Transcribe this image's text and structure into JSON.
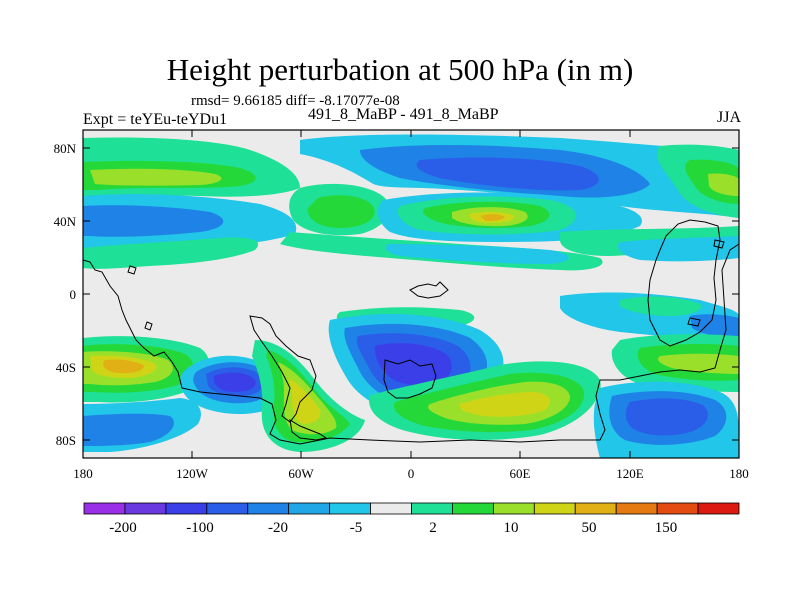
{
  "title": "Height perturbation at 500 hPa (in m)",
  "stats": "rmsd= 9.66185 diff= -8.17077e-08",
  "experiment": "Expt = teYEu-teYDu1",
  "case_label": "491_8_MaBP - 491_8_MaBP",
  "season": "JJA",
  "lat_labels": [
    "80N",
    "40N",
    "0",
    "40S",
    "80S"
  ],
  "lon_labels": [
    "180",
    "120W",
    "60W",
    "0",
    "60E",
    "120E",
    "180"
  ],
  "colorbar": {
    "colors": [
      "#9a2fe8",
      "#6a3ae0",
      "#3b3fe8",
      "#2a5de8",
      "#1f82e6",
      "#21a6e6",
      "#21c6e8",
      "#ebebeb",
      "#1ee096",
      "#25d83a",
      "#9ae02a",
      "#cfd516",
      "#e0b015",
      "#e57a12",
      "#e34b10",
      "#dd1a12"
    ],
    "labels": [
      "-200",
      "-100",
      "-20",
      "-5",
      "2",
      "10",
      "50",
      "150"
    ]
  }
}
